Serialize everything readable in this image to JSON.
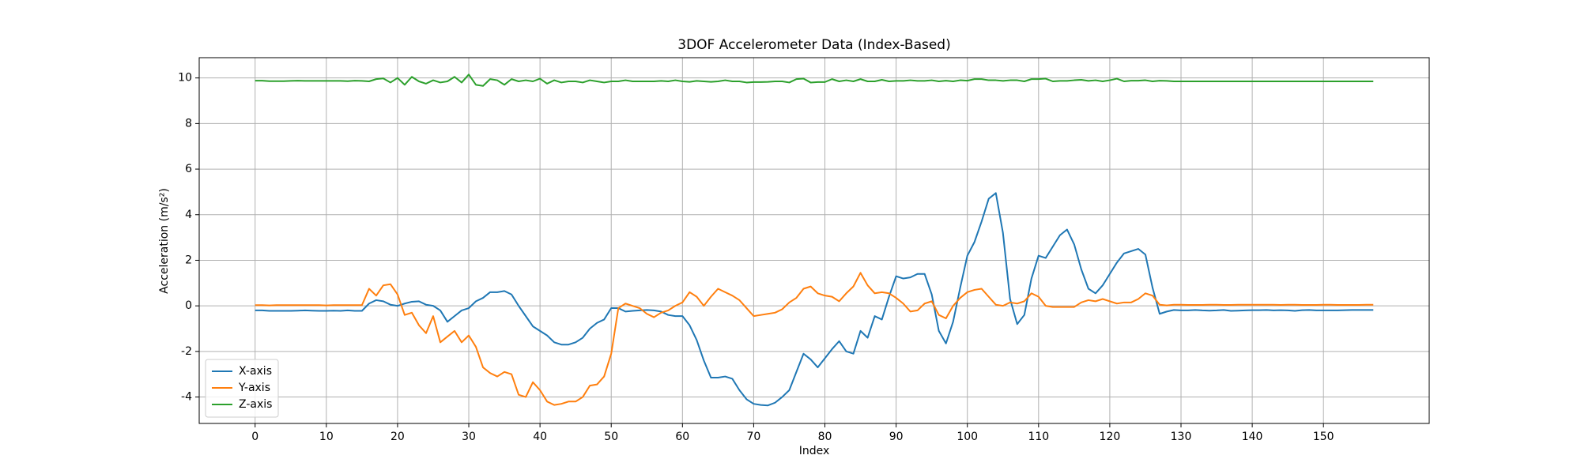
{
  "chart_data": {
    "type": "line",
    "title": "3DOF Accelerometer Data (Index-Based)",
    "xlabel": "Index",
    "ylabel": "Acceleration (m/s²)",
    "x": [
      0,
      1,
      2,
      3,
      4,
      5,
      6,
      7,
      8,
      9,
      10,
      11,
      12,
      13,
      14,
      15,
      16,
      17,
      18,
      19,
      20,
      21,
      22,
      23,
      24,
      25,
      26,
      27,
      28,
      29,
      30,
      31,
      32,
      33,
      34,
      35,
      36,
      37,
      38,
      39,
      40,
      41,
      42,
      43,
      44,
      45,
      46,
      47,
      48,
      49,
      50,
      51,
      52,
      53,
      54,
      55,
      56,
      57,
      58,
      59,
      60,
      61,
      62,
      63,
      64,
      65,
      66,
      67,
      68,
      69,
      70,
      71,
      72,
      73,
      74,
      75,
      76,
      77,
      78,
      79,
      80,
      81,
      82,
      83,
      84,
      85,
      86,
      87,
      88,
      89,
      90,
      91,
      92,
      93,
      94,
      95,
      96,
      97,
      98,
      99,
      100,
      101,
      102,
      103,
      104,
      105,
      106,
      107,
      108,
      109,
      110,
      111,
      112,
      113,
      114,
      115,
      116,
      117,
      118,
      119,
      120,
      121,
      122,
      123,
      124,
      125,
      126,
      127,
      128,
      129,
      130,
      131,
      132,
      133,
      134,
      135,
      136,
      137,
      138,
      139,
      140,
      141,
      142,
      143,
      144,
      145,
      146,
      147,
      148,
      149,
      150,
      151,
      152,
      153,
      154,
      155,
      156,
      157
    ],
    "series": [
      {
        "name": "X-axis",
        "color": "#1f77b4",
        "values": [
          -0.2,
          -0.2,
          -0.22,
          -0.22,
          -0.22,
          -0.22,
          -0.21,
          -0.2,
          -0.21,
          -0.22,
          -0.22,
          -0.21,
          -0.22,
          -0.2,
          -0.22,
          -0.22,
          0.1,
          0.25,
          0.2,
          0.05,
          0.0,
          0.1,
          0.18,
          0.2,
          0.05,
          0.0,
          -0.2,
          -0.7,
          -0.45,
          -0.2,
          -0.1,
          0.2,
          0.35,
          0.6,
          0.6,
          0.65,
          0.5,
          0.0,
          -0.45,
          -0.9,
          -1.1,
          -1.3,
          -1.6,
          -1.7,
          -1.7,
          -1.6,
          -1.4,
          -1.0,
          -0.75,
          -0.6,
          -0.1,
          -0.1,
          -0.25,
          -0.22,
          -0.2,
          -0.18,
          -0.2,
          -0.25,
          -0.4,
          -0.45,
          -0.45,
          -0.85,
          -1.5,
          -2.4,
          -3.15,
          -3.15,
          -3.1,
          -3.2,
          -3.7,
          -4.1,
          -4.3,
          -4.35,
          -4.37,
          -4.25,
          -4.0,
          -3.7,
          -2.9,
          -2.1,
          -2.35,
          -2.7,
          -2.3,
          -1.9,
          -1.55,
          -2.0,
          -2.1,
          -1.1,
          -1.4,
          -0.45,
          -0.6,
          0.4,
          1.3,
          1.2,
          1.25,
          1.4,
          1.4,
          0.5,
          -1.1,
          -1.65,
          -0.7,
          0.8,
          2.2,
          2.8,
          3.7,
          4.7,
          4.95,
          3.2,
          0.3,
          -0.8,
          -0.4,
          1.2,
          2.2,
          2.1,
          2.6,
          3.1,
          3.35,
          2.7,
          1.6,
          0.75,
          0.55,
          0.9,
          1.4,
          1.9,
          2.3,
          2.4,
          2.5,
          2.25,
          0.8,
          -0.35,
          -0.25,
          -0.18,
          -0.2,
          -0.2,
          -0.18,
          -0.2,
          -0.21,
          -0.2,
          -0.18,
          -0.22,
          -0.21,
          -0.2,
          -0.19,
          -0.19,
          -0.18,
          -0.2,
          -0.19,
          -0.2,
          -0.22,
          -0.19,
          -0.18,
          -0.2,
          -0.2,
          -0.2,
          -0.2,
          -0.19,
          -0.18,
          -0.18,
          -0.18,
          -0.18
        ]
      },
      {
        "name": "Y-axis",
        "color": "#ff7f0e",
        "values": [
          0.03,
          0.03,
          0.02,
          0.03,
          0.03,
          0.03,
          0.03,
          0.03,
          0.03,
          0.03,
          0.02,
          0.03,
          0.03,
          0.03,
          0.03,
          0.03,
          0.75,
          0.45,
          0.9,
          0.95,
          0.5,
          -0.4,
          -0.3,
          -0.85,
          -1.2,
          -0.45,
          -1.6,
          -1.35,
          -1.1,
          -1.6,
          -1.3,
          -1.8,
          -2.7,
          -2.95,
          -3.1,
          -2.9,
          -3.0,
          -3.9,
          -4.0,
          -3.35,
          -3.7,
          -4.2,
          -4.35,
          -4.3,
          -4.2,
          -4.2,
          -4.0,
          -3.5,
          -3.45,
          -3.1,
          -2.1,
          -0.1,
          0.1,
          0.0,
          -0.1,
          -0.35,
          -0.5,
          -0.3,
          -0.2,
          0.0,
          0.15,
          0.6,
          0.4,
          0.0,
          0.4,
          0.75,
          0.6,
          0.45,
          0.25,
          -0.1,
          -0.45,
          -0.4,
          -0.35,
          -0.3,
          -0.15,
          0.15,
          0.35,
          0.75,
          0.85,
          0.55,
          0.45,
          0.4,
          0.2,
          0.55,
          0.85,
          1.45,
          0.9,
          0.55,
          0.6,
          0.55,
          0.35,
          0.1,
          -0.25,
          -0.2,
          0.1,
          0.2,
          -0.4,
          -0.55,
          0.0,
          0.35,
          0.6,
          0.7,
          0.75,
          0.4,
          0.05,
          0.0,
          0.15,
          0.1,
          0.2,
          0.55,
          0.4,
          0.0,
          -0.05,
          -0.05,
          -0.05,
          -0.05,
          0.15,
          0.25,
          0.2,
          0.3,
          0.2,
          0.1,
          0.15,
          0.15,
          0.3,
          0.55,
          0.45,
          0.05,
          0.02,
          0.05,
          0.05,
          0.04,
          0.04,
          0.04,
          0.05,
          0.05,
          0.04,
          0.04,
          0.05,
          0.05,
          0.05,
          0.05,
          0.05,
          0.05,
          0.04,
          0.05,
          0.05,
          0.04,
          0.04,
          0.04,
          0.05,
          0.05,
          0.04,
          0.04,
          0.04,
          0.04,
          0.05,
          0.05
        ]
      },
      {
        "name": "Z-axis",
        "color": "#2ca02c",
        "values": [
          9.88,
          9.88,
          9.86,
          9.86,
          9.86,
          9.87,
          9.88,
          9.87,
          9.87,
          9.87,
          9.87,
          9.87,
          9.87,
          9.86,
          9.88,
          9.87,
          9.85,
          9.95,
          9.98,
          9.8,
          10.0,
          9.7,
          10.05,
          9.85,
          9.75,
          9.9,
          9.8,
          9.85,
          10.05,
          9.8,
          10.15,
          9.7,
          9.65,
          9.95,
          9.9,
          9.7,
          9.95,
          9.85,
          9.9,
          9.85,
          9.97,
          9.75,
          9.9,
          9.8,
          9.85,
          9.85,
          9.8,
          9.9,
          9.85,
          9.8,
          9.85,
          9.85,
          9.9,
          9.85,
          9.85,
          9.85,
          9.85,
          9.87,
          9.85,
          9.9,
          9.85,
          9.83,
          9.87,
          9.85,
          9.83,
          9.85,
          9.9,
          9.85,
          9.85,
          9.8,
          9.82,
          9.82,
          9.83,
          9.85,
          9.85,
          9.8,
          9.95,
          9.97,
          9.8,
          9.82,
          9.82,
          9.95,
          9.85,
          9.9,
          9.85,
          9.95,
          9.85,
          9.85,
          9.92,
          9.85,
          9.87,
          9.87,
          9.9,
          9.87,
          9.87,
          9.9,
          9.85,
          9.88,
          9.85,
          9.9,
          9.88,
          9.95,
          9.95,
          9.9,
          9.9,
          9.87,
          9.9,
          9.9,
          9.85,
          9.95,
          9.95,
          9.97,
          9.85,
          9.87,
          9.87,
          9.9,
          9.92,
          9.87,
          9.9,
          9.85,
          9.9,
          9.97,
          9.85,
          9.88,
          9.88,
          9.9,
          9.85,
          9.88,
          9.87,
          9.85,
          9.85,
          9.85,
          9.85,
          9.85,
          9.85,
          9.85,
          9.85,
          9.85,
          9.85,
          9.85,
          9.85,
          9.85,
          9.85,
          9.85,
          9.85,
          9.85,
          9.85,
          9.85,
          9.85,
          9.85,
          9.85,
          9.85,
          9.85,
          9.85,
          9.85,
          9.85,
          9.85,
          9.85
        ]
      }
    ],
    "xlim": [
      -7.85,
      164.85
    ],
    "xticks": [
      0,
      10,
      20,
      30,
      40,
      50,
      60,
      70,
      80,
      90,
      100,
      110,
      120,
      130,
      140,
      150
    ],
    "ylim": [
      -5.16,
      10.89
    ],
    "yticks": [
      -4,
      -2,
      0,
      2,
      4,
      6,
      8,
      10
    ],
    "grid": true,
    "legend": "lower left"
  }
}
